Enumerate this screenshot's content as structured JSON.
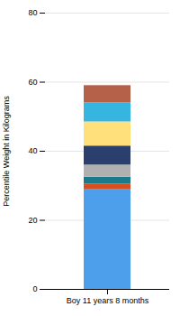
{
  "chart_data": {
    "type": "bar",
    "stacked": true,
    "grid": true,
    "categories": [
      "Boy 11 years 8 months"
    ],
    "series": [
      {
        "color": "#4D9FEC",
        "values": [
          29.0
        ]
      },
      {
        "color": "#D94E1F",
        "values": [
          1.5
        ]
      },
      {
        "color": "#1A7A8A",
        "values": [
          2.0
        ]
      },
      {
        "color": "#B0B0B0",
        "values": [
          3.5
        ]
      },
      {
        "color": "#2B3F6E",
        "values": [
          5.5
        ]
      },
      {
        "color": "#FFE07A",
        "values": [
          7.0
        ]
      },
      {
        "color": "#35B5E0",
        "values": [
          5.5
        ]
      },
      {
        "color": "#B5614A",
        "values": [
          5.0
        ]
      }
    ],
    "ylabel": "Percentile Weight in Kilograms",
    "ylim": [
      0,
      80
    ],
    "yticks": [
      0,
      20,
      40,
      60,
      80
    ]
  }
}
